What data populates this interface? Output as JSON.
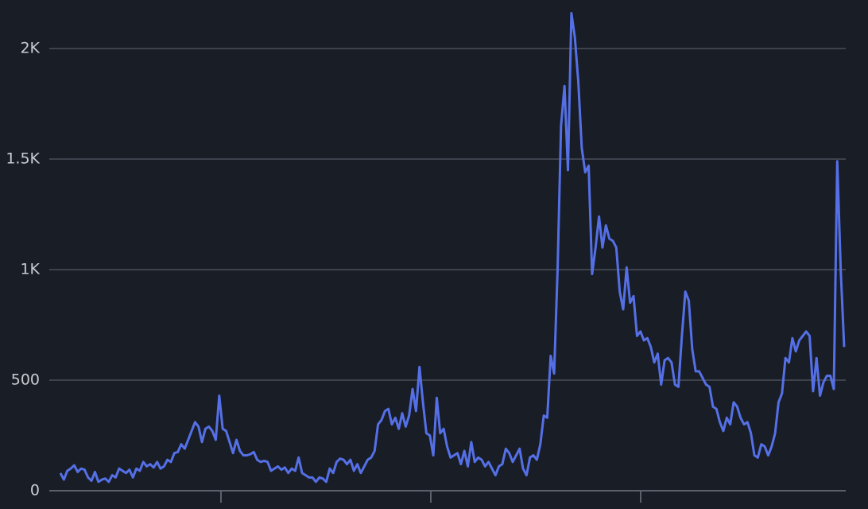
{
  "chart_data": {
    "type": "line",
    "color": "#5570e6",
    "grid": true,
    "ylim": [
      0,
      2200
    ],
    "yticks": [
      0,
      500,
      {
        "value": 1000,
        "label": "1K"
      },
      {
        "value": 1500,
        "label": "1.5K"
      },
      {
        "value": 2000,
        "label": "2K"
      }
    ],
    "values": [
      80,
      50,
      90,
      100,
      115,
      85,
      100,
      95,
      60,
      45,
      85,
      40,
      50,
      55,
      40,
      70,
      60,
      100,
      90,
      80,
      95,
      60,
      100,
      90,
      130,
      110,
      120,
      105,
      130,
      100,
      110,
      140,
      130,
      170,
      175,
      210,
      190,
      230,
      270,
      310,
      290,
      220,
      280,
      290,
      270,
      230,
      430,
      280,
      270,
      220,
      170,
      230,
      180,
      160,
      160,
      165,
      175,
      140,
      130,
      135,
      130,
      90,
      100,
      110,
      95,
      105,
      80,
      100,
      90,
      150,
      80,
      70,
      60,
      60,
      40,
      60,
      55,
      40,
      100,
      80,
      130,
      145,
      140,
      120,
      140,
      90,
      120,
      80,
      110,
      140,
      150,
      180,
      300,
      320,
      360,
      370,
      300,
      330,
      280,
      350,
      290,
      340,
      460,
      360,
      560,
      400,
      260,
      250,
      160,
      420,
      260,
      280,
      200,
      150,
      160,
      170,
      120,
      180,
      110,
      220,
      130,
      150,
      140,
      110,
      130,
      100,
      70,
      110,
      120,
      190,
      170,
      130,
      160,
      190,
      100,
      70,
      150,
      160,
      140,
      210,
      340,
      330,
      610,
      530,
      1000,
      1650,
      1830,
      1450,
      2160,
      2050,
      1850,
      1550,
      1440,
      1470,
      980,
      1100,
      1240,
      1100,
      1200,
      1140,
      1130,
      1100,
      900,
      820,
      1010,
      850,
      880,
      700,
      720,
      680,
      690,
      650,
      580,
      620,
      480,
      590,
      600,
      580,
      480,
      470,
      700,
      900,
      860,
      640,
      540,
      540,
      510,
      480,
      470,
      380,
      370,
      310,
      270,
      330,
      300,
      400,
      380,
      330,
      300,
      310,
      260,
      160,
      150,
      210,
      200,
      160,
      200,
      260,
      400,
      440,
      600,
      580,
      690,
      630,
      680,
      700,
      720,
      700,
      450,
      600,
      430,
      490,
      520,
      520,
      460,
      1490,
      1000,
      650
    ]
  }
}
